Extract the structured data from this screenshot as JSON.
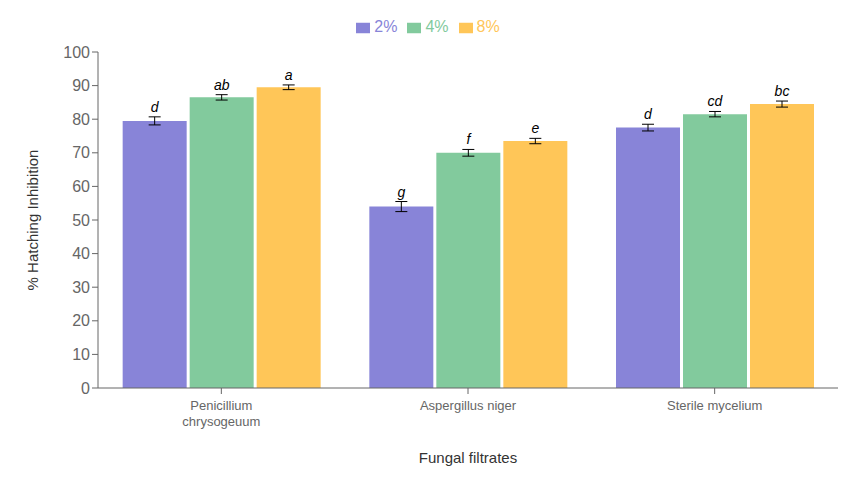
{
  "chart_data": {
    "type": "bar",
    "xlabel": "Fungal filtrates",
    "ylabel": "% Hatching Inhibition",
    "categories": [
      "Penicillium\nchrysogeuum",
      "Aspergillus niger",
      "Sterile mycelium"
    ],
    "series": [
      {
        "name": "2%",
        "color": "#8884d8",
        "values": [
          79.5,
          54.0,
          77.5
        ],
        "errors": [
          1.2,
          1.5,
          1.0
        ],
        "annotations": [
          "d",
          "g",
          "d"
        ]
      },
      {
        "name": "4%",
        "color": "#82ca9d",
        "values": [
          86.5,
          70.0,
          81.5
        ],
        "errors": [
          0.8,
          1.0,
          0.8
        ],
        "annotations": [
          "ab",
          "f",
          "cd"
        ]
      },
      {
        "name": "8%",
        "color": "#ffc658",
        "values": [
          89.5,
          73.5,
          84.5
        ],
        "errors": [
          0.7,
          0.8,
          0.9
        ],
        "annotations": [
          "a",
          "e",
          "bc"
        ]
      }
    ],
    "ylim": [
      0,
      100
    ],
    "yticks": [
      0,
      10,
      20,
      30,
      40,
      50,
      60,
      70,
      80,
      90,
      100
    ],
    "grid": false,
    "legend": "top"
  }
}
